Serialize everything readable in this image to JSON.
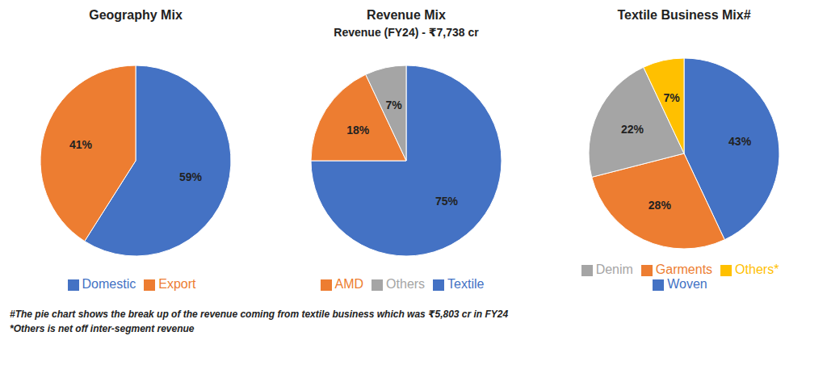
{
  "chart_data": [
    {
      "type": "pie",
      "title": "Geography Mix",
      "categories": [
        "Domestic",
        "Export"
      ],
      "values": [
        59,
        41
      ],
      "value_labels": [
        "59%",
        "41%"
      ],
      "colors": [
        "#4472C4",
        "#ED7D31"
      ],
      "data_labels": true,
      "legend": "bottom"
    },
    {
      "type": "pie",
      "title": "Revenue Mix",
      "subtitle": "Revenue (FY24) - ₹7,738 cr",
      "categories": [
        "Textile",
        "AMD",
        "Others"
      ],
      "values": [
        75,
        18,
        7
      ],
      "value_labels": [
        "75%",
        "18%",
        "7%"
      ],
      "colors": [
        "#4472C4",
        "#ED7D31",
        "#A5A5A5"
      ],
      "data_labels": true,
      "legend": "bottom"
    },
    {
      "type": "pie",
      "title": "Textile Business Mix#",
      "categories": [
        "Woven",
        "Garments",
        "Denim",
        "Others*"
      ],
      "values": [
        43,
        28,
        22,
        7
      ],
      "value_labels": [
        "43%",
        "28%",
        "22%",
        "7%"
      ],
      "colors": [
        "#4472C4",
        "#ED7D31",
        "#A5A5A5",
        "#FFC000"
      ],
      "data_labels": true,
      "legend": "bottom",
      "annotations": [
        "#The pie chart shows the break up of the revenue coming from textile business which was ₹5,803 cr in FY24",
        "*Others is net off inter-segment revenue"
      ]
    }
  ]
}
